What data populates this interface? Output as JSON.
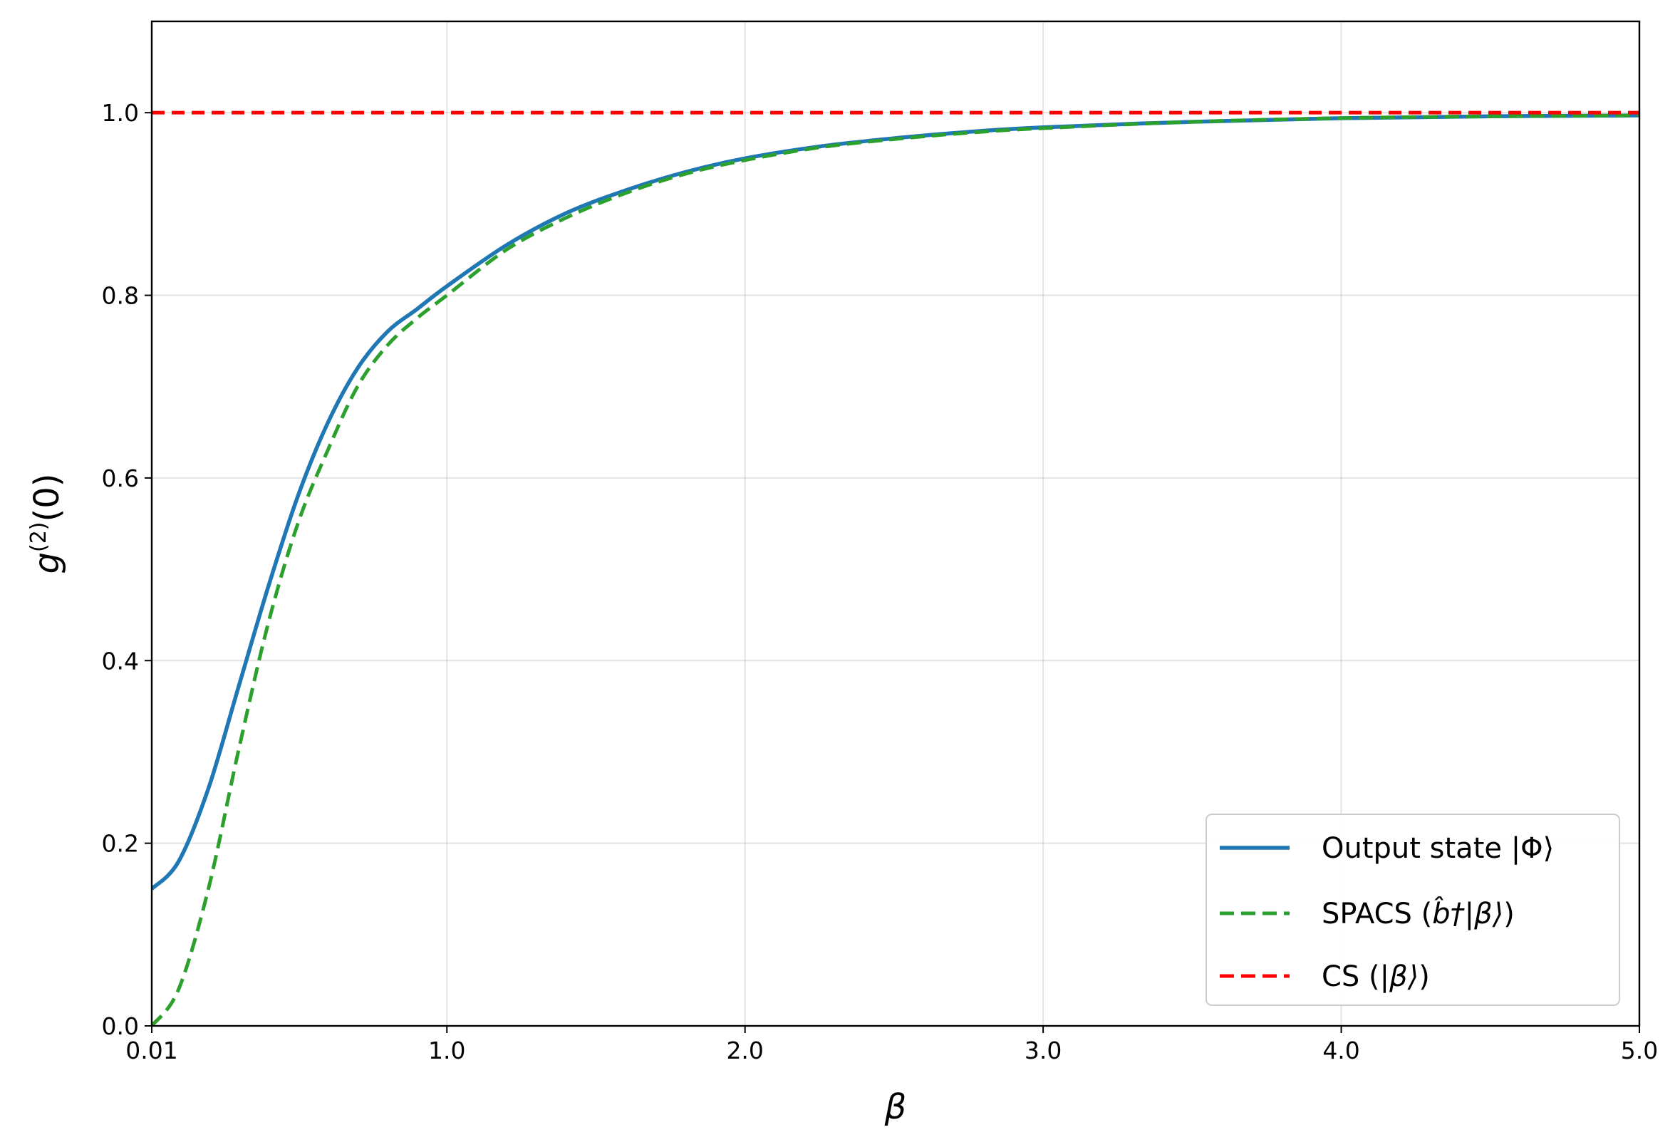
{
  "chart_data": {
    "type": "line",
    "xlabel": "β",
    "ylabel": "g(2)(0)",
    "ylabel_parts": {
      "base": "g",
      "sup": "(2)",
      "arg": "(0)"
    },
    "xlim": [
      0.01,
      5.0
    ],
    "ylim": [
      0.0,
      1.1
    ],
    "grid": true,
    "legend_position": "lower-right",
    "x_ticks": [
      {
        "value": 0.01,
        "label": "0.01"
      },
      {
        "value": 1.0,
        "label": "1.0"
      },
      {
        "value": 2.0,
        "label": "2.0"
      },
      {
        "value": 3.0,
        "label": "3.0"
      },
      {
        "value": 4.0,
        "label": "4.0"
      },
      {
        "value": 5.0,
        "label": "5.0"
      }
    ],
    "y_ticks": [
      {
        "value": 0.0,
        "label": "0.0"
      },
      {
        "value": 0.2,
        "label": "0.2"
      },
      {
        "value": 0.4,
        "label": "0.4"
      },
      {
        "value": 0.6,
        "label": "0.6"
      },
      {
        "value": 0.8,
        "label": "0.8"
      },
      {
        "value": 1.0,
        "label": "1.0"
      }
    ],
    "series": [
      {
        "name": "Output state |Φ⟩",
        "legend": {
          "prefix": "Output state |Φ⟩",
          "math": "",
          "suffix": ""
        },
        "color": "#1f77b4",
        "style": "solid",
        "x": [
          0.01,
          0.1,
          0.2,
          0.3,
          0.4,
          0.5,
          0.6,
          0.7,
          0.8,
          0.9,
          1.0,
          1.2,
          1.4,
          1.6,
          1.8,
          2.0,
          2.25,
          2.5,
          2.75,
          3.0,
          3.5,
          4.0,
          4.5,
          5.0
        ],
        "y": [
          0.15,
          0.18,
          0.26,
          0.37,
          0.48,
          0.58,
          0.66,
          0.72,
          0.76,
          0.785,
          0.81,
          0.855,
          0.89,
          0.915,
          0.935,
          0.95,
          0.963,
          0.972,
          0.979,
          0.984,
          0.99,
          0.994,
          0.996,
          0.997
        ]
      },
      {
        "name": "SPACS (b̂†|β⟩)",
        "legend": {
          "prefix": "SPACS (",
          "math": "b̂†|β⟩",
          "suffix": ")"
        },
        "color": "#2ca02c",
        "style": "dashed",
        "x": [
          0.01,
          0.1,
          0.2,
          0.3,
          0.4,
          0.5,
          0.6,
          0.7,
          0.8,
          0.9,
          1.0,
          1.2,
          1.4,
          1.6,
          1.8,
          2.0,
          2.25,
          2.5,
          2.75,
          3.0,
          3.5,
          4.0,
          4.5,
          5.0
        ],
        "y": [
          0.0,
          0.04,
          0.15,
          0.3,
          0.44,
          0.55,
          0.63,
          0.7,
          0.745,
          0.775,
          0.8,
          0.85,
          0.885,
          0.912,
          0.933,
          0.948,
          0.962,
          0.971,
          0.978,
          0.983,
          0.99,
          0.994,
          0.996,
          0.997
        ]
      },
      {
        "name": "CS (|β⟩)",
        "legend": {
          "prefix": "CS (",
          "math": "|β⟩",
          "suffix": ")"
        },
        "color": "#ff0000",
        "style": "dashed",
        "x": [
          0.01,
          5.0
        ],
        "y": [
          1.0,
          1.0
        ]
      }
    ]
  }
}
